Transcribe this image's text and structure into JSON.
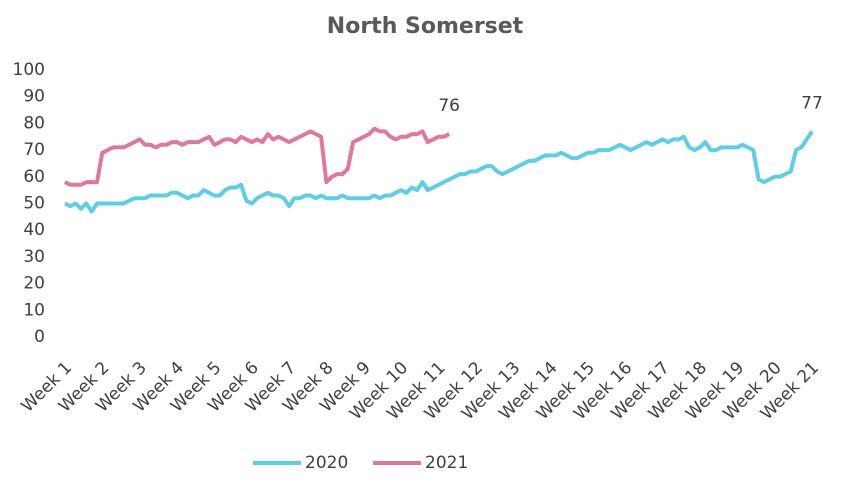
{
  "chart_data": {
    "type": "line",
    "title": "North Somerset",
    "categories": [
      "Week 1",
      null,
      null,
      null,
      null,
      null,
      null,
      "Week 2",
      null,
      null,
      null,
      null,
      null,
      null,
      "Week 3",
      null,
      null,
      null,
      null,
      null,
      null,
      "Week 4",
      null,
      null,
      null,
      null,
      null,
      null,
      "Week 5",
      null,
      null,
      null,
      null,
      null,
      null,
      "Week 6",
      null,
      null,
      null,
      null,
      null,
      null,
      "Week 7",
      null,
      null,
      null,
      null,
      null,
      null,
      "Week 8",
      null,
      null,
      null,
      null,
      null,
      null,
      "Week 9",
      null,
      null,
      null,
      null,
      null,
      null,
      "Week 10",
      null,
      null,
      null,
      null,
      null,
      null,
      "Week 11",
      null,
      null,
      null,
      null,
      null,
      null,
      "Week 12",
      null,
      null,
      null,
      null,
      null,
      null,
      "Week 13",
      null,
      null,
      null,
      null,
      null,
      null,
      "Week 14",
      null,
      null,
      null,
      null,
      null,
      null,
      "Week 15",
      null,
      null,
      null,
      null,
      null,
      null,
      "Week 16",
      null,
      null,
      null,
      null,
      null,
      null,
      "Week 17",
      null,
      null,
      null,
      null,
      null,
      null,
      "Week 18",
      null,
      null,
      null,
      null,
      null,
      null,
      "Week 19",
      null,
      null,
      null,
      null,
      null,
      null,
      "Week 20",
      null,
      null,
      null,
      null,
      null,
      null,
      "Week 21"
    ],
    "series": [
      {
        "name": "2020",
        "color": "#5ccfe6",
        "values": [
          50,
          49,
          50,
          48,
          50,
          47,
          50,
          50,
          50,
          50,
          50,
          50,
          51,
          52,
          52,
          52,
          53,
          53,
          53,
          53,
          54,
          54,
          53,
          52,
          53,
          53,
          55,
          54,
          53,
          53,
          55,
          56,
          56,
          57,
          51,
          50,
          52,
          53,
          54,
          53,
          53,
          52,
          49,
          52,
          52,
          53,
          53,
          52,
          53,
          52,
          52,
          52,
          53,
          52,
          52,
          52,
          52,
          52,
          53,
          52,
          53,
          53,
          54,
          55,
          54,
          56,
          55,
          58,
          55,
          56,
          57,
          58,
          59,
          60,
          61,
          61,
          62,
          62,
          63,
          64,
          64,
          62,
          61,
          62,
          63,
          64,
          65,
          66,
          66,
          67,
          68,
          68,
          68,
          69,
          68,
          67,
          67,
          68,
          69,
          69,
          70,
          70,
          70,
          71,
          72,
          71,
          70,
          71,
          72,
          73,
          72,
          73,
          74,
          73,
          74,
          74,
          75,
          71,
          70,
          71,
          73,
          70,
          70,
          71,
          71,
          71,
          71,
          72,
          71,
          70,
          59,
          58,
          59,
          60,
          60,
          61,
          62,
          70,
          71,
          74,
          77
        ]
      },
      {
        "name": "2021",
        "color": "#e0789a",
        "values": [
          58,
          57,
          57,
          57,
          58,
          58,
          58,
          69,
          70,
          71,
          71,
          71,
          72,
          73,
          74,
          72,
          72,
          71,
          72,
          72,
          73,
          73,
          72,
          73,
          73,
          73,
          74,
          75,
          72,
          73,
          74,
          74,
          73,
          75,
          74,
          73,
          74,
          73,
          76,
          74,
          75,
          74,
          73,
          74,
          75,
          76,
          77,
          76,
          75,
          58,
          60,
          61,
          61,
          63,
          73,
          74,
          75,
          76,
          78,
          77,
          77,
          75,
          74,
          75,
          75,
          76,
          76,
          77,
          73,
          74,
          75,
          75,
          76,
          null,
          null,
          null,
          null,
          null,
          null,
          null,
          null,
          null,
          null,
          null,
          null,
          null,
          null,
          null,
          null,
          null,
          null,
          null,
          null,
          null,
          null,
          null,
          null,
          null,
          null,
          null,
          null,
          null,
          null,
          null,
          null,
          null,
          null,
          null,
          null,
          null,
          null,
          null,
          null,
          null,
          null,
          null,
          null,
          null,
          null,
          null,
          null,
          null,
          null,
          null,
          null,
          null,
          null,
          null,
          null,
          null,
          null,
          null,
          null,
          null,
          null,
          null,
          null,
          null,
          null,
          null,
          null
        ]
      }
    ],
    "ylim": [
      0,
      100
    ],
    "yticks": [
      0,
      10,
      20,
      30,
      40,
      50,
      60,
      70,
      80,
      90,
      100
    ],
    "grid": false,
    "legend": "bottom"
  }
}
